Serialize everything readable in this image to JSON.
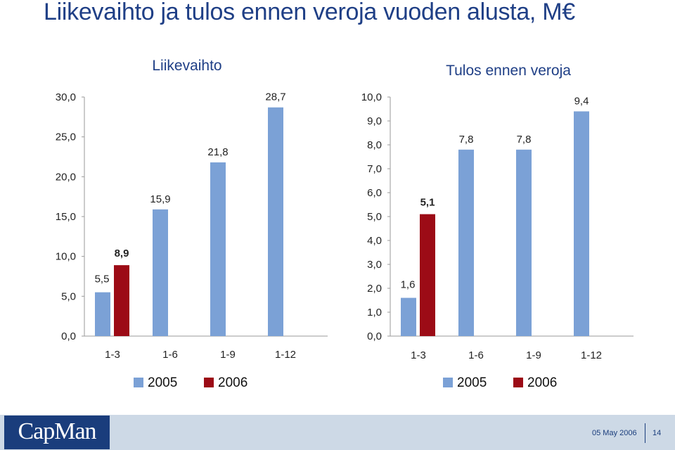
{
  "page": {
    "title": "Liikevaihto ja tulos ennen veroja vuoden alusta, M€"
  },
  "colors": {
    "series_2005": "#7ba1d6",
    "series_2006": "#9c0b16",
    "title": "#1f3f86"
  },
  "chart_data": [
    {
      "type": "bar",
      "title": "Liikevaihto",
      "categories": [
        "1-3",
        "1-6",
        "1-9",
        "1-12"
      ],
      "ylim": [
        0,
        30
      ],
      "yticks": [
        "0,0",
        "5,0",
        "10,0",
        "15,0",
        "20,0",
        "25,0",
        "30,0"
      ],
      "ytick_values": [
        0,
        5,
        10,
        15,
        20,
        25,
        30
      ],
      "series": [
        {
          "name": "2005",
          "values": [
            5.5,
            15.9,
            21.8,
            28.7
          ],
          "labels": [
            "5,5",
            "15,9",
            "21,8",
            "28,7"
          ]
        },
        {
          "name": "2006",
          "values": [
            8.9,
            null,
            null,
            null
          ],
          "labels": [
            "8,9",
            null,
            null,
            null
          ]
        }
      ],
      "legend": [
        "2005",
        "2006"
      ],
      "legend_position": "bottom",
      "grid": false
    },
    {
      "type": "bar",
      "title": "Tulos ennen veroja",
      "categories": [
        "1-3",
        "1-6",
        "1-9",
        "1-12"
      ],
      "ylim": [
        0,
        10
      ],
      "yticks": [
        "0,0",
        "1,0",
        "2,0",
        "3,0",
        "4,0",
        "5,0",
        "6,0",
        "7,0",
        "8,0",
        "9,0",
        "10,0"
      ],
      "ytick_values": [
        0,
        1,
        2,
        3,
        4,
        5,
        6,
        7,
        8,
        9,
        10
      ],
      "series": [
        {
          "name": "2005",
          "values": [
            1.6,
            7.8,
            7.8,
            9.4
          ],
          "labels": [
            "1,6",
            "7,8",
            "7,8",
            "9,4"
          ]
        },
        {
          "name": "2006",
          "values": [
            5.1,
            null,
            null,
            null
          ],
          "labels": [
            "5,1",
            null,
            null,
            null
          ]
        }
      ],
      "legend": [
        "2005",
        "2006"
      ],
      "legend_position": "bottom",
      "grid": false
    }
  ],
  "footer": {
    "logo": "CapMan",
    "date": "05 May 2006",
    "page_number": "14"
  }
}
